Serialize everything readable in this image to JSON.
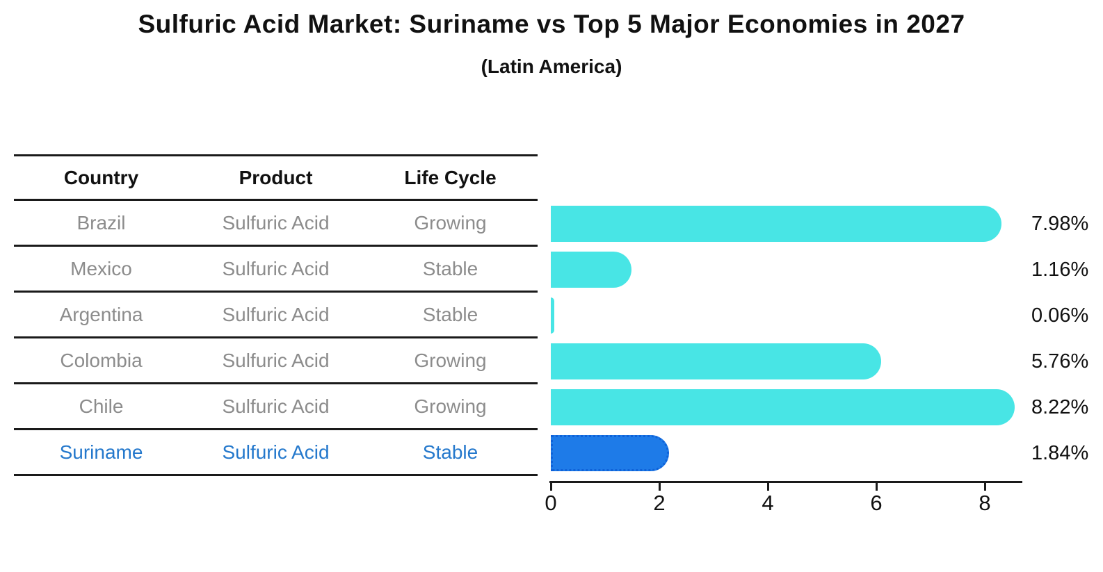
{
  "title": "Sulfuric Acid Market: Suriname vs Top 5 Major Economies in 2027",
  "subtitle": "(Latin America)",
  "colors": {
    "bar_default": "#48E5E5",
    "bar_highlight": "#1E7BE8",
    "bar_highlight_border": "#0F62D8",
    "highlight_text": "#2478CC",
    "table_text": "#8C8C8C",
    "heading_text": "#111111",
    "line_color": "#1A1A1A"
  },
  "table": {
    "headers": [
      "Country",
      "Product",
      "Life Cycle"
    ],
    "rows": [
      {
        "country": "Brazil",
        "product": "Sulfuric Acid",
        "life_cycle": "Growing",
        "highlight": false
      },
      {
        "country": "Mexico",
        "product": "Sulfuric Acid",
        "life_cycle": "Stable",
        "highlight": false
      },
      {
        "country": "Argentina",
        "product": "Sulfuric Acid",
        "life_cycle": "Stable",
        "highlight": false
      },
      {
        "country": "Colombia",
        "product": "Sulfuric Acid",
        "life_cycle": "Growing",
        "highlight": false
      },
      {
        "country": "Chile",
        "product": "Sulfuric Acid",
        "life_cycle": "Growing",
        "highlight": false
      },
      {
        "country": "Suriname",
        "product": "Sulfuric Acid",
        "life_cycle": "Stable",
        "highlight": true
      }
    ]
  },
  "chart_data": {
    "type": "bar",
    "orientation": "horizontal",
    "title": "Sulfuric Acid Market: Suriname vs Top 5 Major Economies in 2027",
    "subtitle": "(Latin America)",
    "categories": [
      "Brazil",
      "Mexico",
      "Argentina",
      "Colombia",
      "Chile",
      "Suriname"
    ],
    "values": [
      7.98,
      1.16,
      0.06,
      5.76,
      8.22,
      1.84
    ],
    "value_labels": [
      "7.98%",
      "1.16%",
      "0.06%",
      "5.76%",
      "8.22%",
      "1.84%"
    ],
    "highlight_category": "Suriname",
    "xlim": [
      0,
      8.7
    ],
    "xticks": [
      0,
      2,
      4,
      6,
      8
    ],
    "xlabel": "",
    "ylabel": "",
    "grid": false,
    "legend": "none",
    "unit": "percent"
  }
}
